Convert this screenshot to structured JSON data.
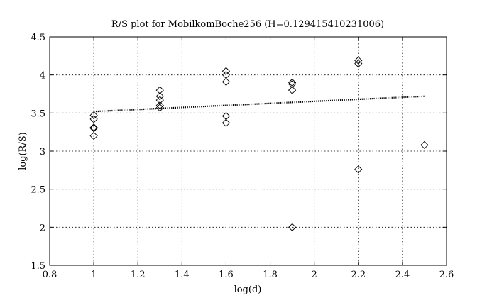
{
  "chart_data": {
    "type": "scatter",
    "title": "R/S plot for MobilkomBoche256 (H=0.129415410231006)",
    "xlabel": "log(d)",
    "ylabel": "log(R/S)",
    "xlim": [
      0.8,
      2.6
    ],
    "ylim": [
      1.5,
      4.5
    ],
    "xticks": [
      "0.8",
      "1",
      "1.2",
      "1.4",
      "1.6",
      "1.8",
      "2",
      "2.2",
      "2.4",
      "2.6"
    ],
    "yticks": [
      "1.5",
      "2",
      "2.5",
      "3",
      "3.5",
      "4",
      "4.5"
    ],
    "grid": true,
    "marker": "diamond",
    "series": [
      {
        "values": [
          {
            "x": 1.0,
            "y": 3.2
          },
          {
            "x": 1.0,
            "y": 3.3
          },
          {
            "x": 1.0,
            "y": 3.31
          },
          {
            "x": 1.0,
            "y": 3.42
          },
          {
            "x": 1.0,
            "y": 3.47
          },
          {
            "x": 1.3,
            "y": 3.57
          },
          {
            "x": 1.3,
            "y": 3.6
          },
          {
            "x": 1.3,
            "y": 3.67
          },
          {
            "x": 1.3,
            "y": 3.72
          },
          {
            "x": 1.3,
            "y": 3.8
          },
          {
            "x": 1.6,
            "y": 3.37
          },
          {
            "x": 1.6,
            "y": 3.46
          },
          {
            "x": 1.6,
            "y": 3.91
          },
          {
            "x": 1.6,
            "y": 4.0
          },
          {
            "x": 1.6,
            "y": 4.05
          },
          {
            "x": 1.9,
            "y": 2.0
          },
          {
            "x": 1.9,
            "y": 3.8
          },
          {
            "x": 1.9,
            "y": 3.88
          },
          {
            "x": 1.9,
            "y": 3.9
          },
          {
            "x": 2.2,
            "y": 2.76
          },
          {
            "x": 2.2,
            "y": 4.15
          },
          {
            "x": 2.2,
            "y": 4.19
          },
          {
            "x": 2.5,
            "y": 3.08
          }
        ]
      }
    ],
    "fit_line": {
      "x": [
        1.0,
        2.5
      ],
      "y": [
        3.52,
        3.72
      ]
    }
  }
}
